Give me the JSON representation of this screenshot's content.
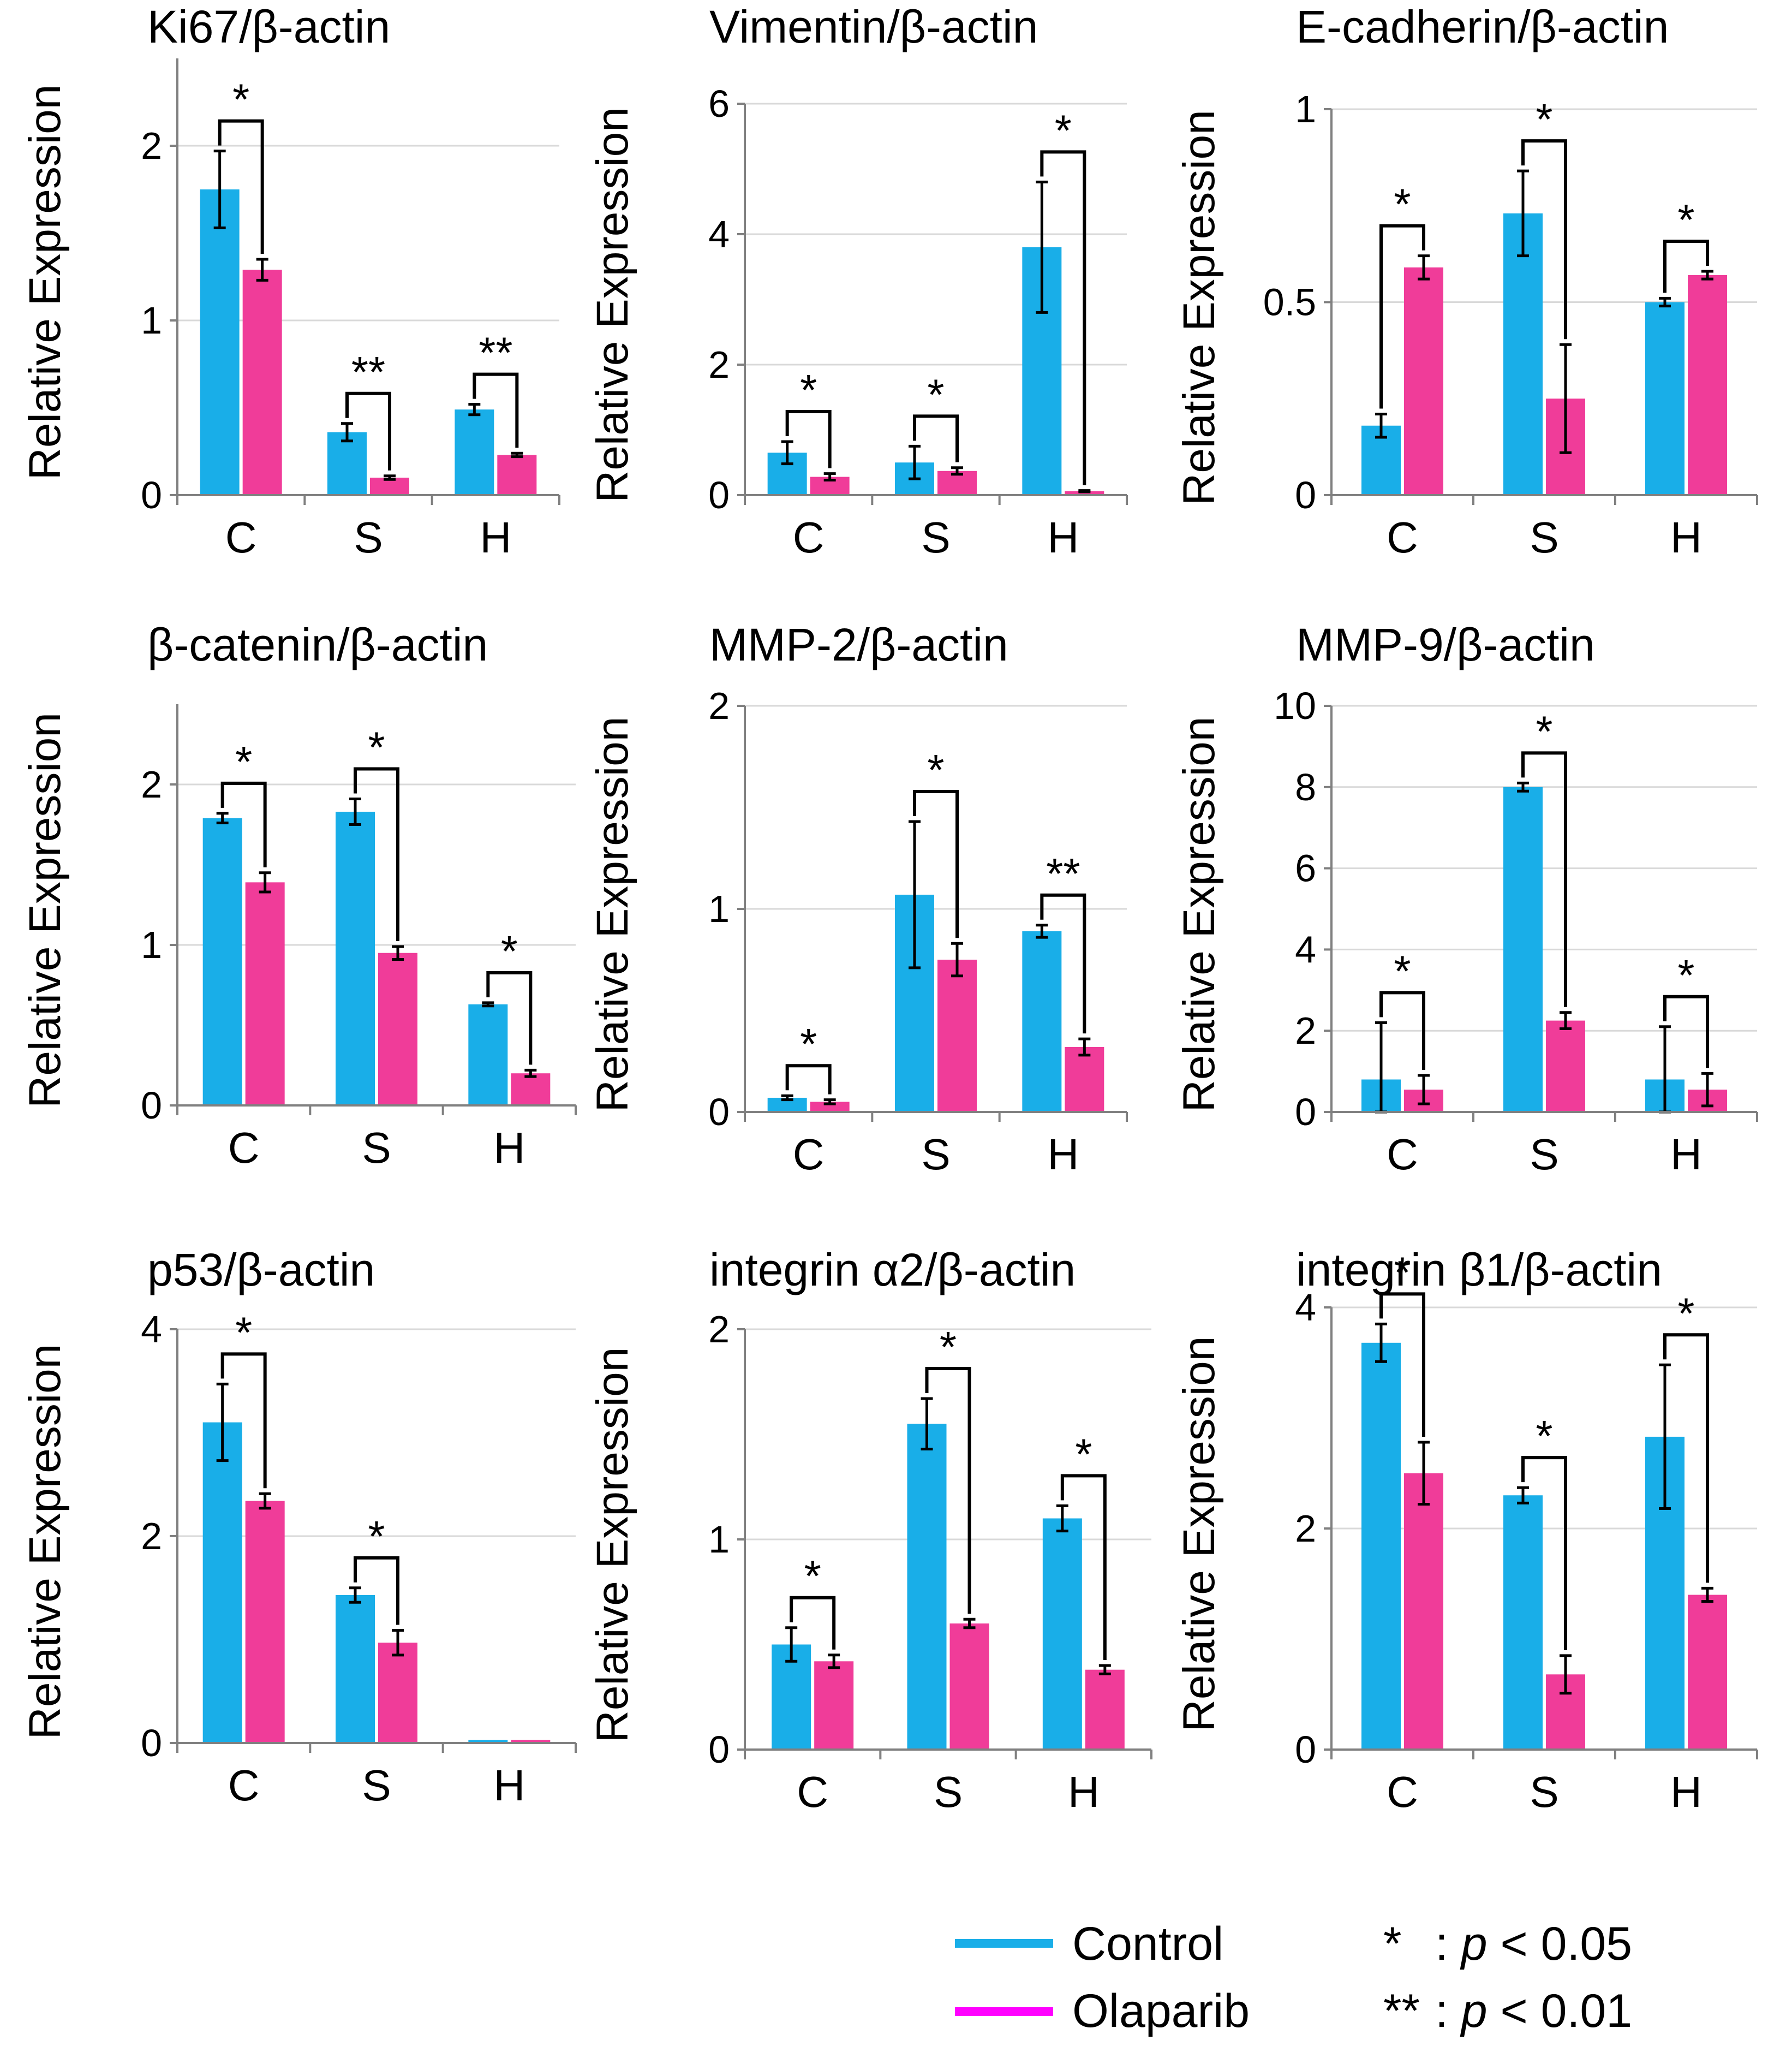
{
  "colors": {
    "control": "#19AEE8",
    "olaparib": "#F03C99",
    "legend_olaparib_line": "#FF00FF",
    "axis": "#808080",
    "grid": "#D9D9D9",
    "error_bar": "#000000"
  },
  "legend": {
    "control_label": "Control",
    "olaparib_label": "Olaparib",
    "sig1_stars": "*",
    "sig1_text": ": p < 0.05",
    "sig1_prefix": ": ",
    "sig1_p": "p",
    "sig1_rest": " < 0.05",
    "sig2_stars": "**",
    "sig2_prefix": ": ",
    "sig2_p": "p",
    "sig2_rest": " < 0.01",
    "sig2_text": ": p < 0.01"
  },
  "chart_data": [
    {
      "type": "bar",
      "title": "Ki67/β-actin",
      "ylabel": "Relative Expression",
      "categories": [
        "C",
        "S",
        "H"
      ],
      "ylim": [
        0,
        2.5
      ],
      "yticks": [
        0,
        1,
        2
      ],
      "series": [
        {
          "name": "Control",
          "values": [
            1.75,
            0.36,
            0.49
          ],
          "errors": [
            0.22,
            0.05,
            0.03
          ]
        },
        {
          "name": "Olaparib",
          "values": [
            1.29,
            0.1,
            0.23
          ],
          "errors": [
            0.06,
            0.01,
            0.01
          ]
        }
      ],
      "significance": [
        {
          "category": "C",
          "label": "*"
        },
        {
          "category": "S",
          "label": "**"
        },
        {
          "category": "H",
          "label": "**"
        }
      ]
    },
    {
      "type": "bar",
      "title": "Vimentin/β-actin",
      "ylabel": "Relative Expression",
      "categories": [
        "C",
        "S",
        "H"
      ],
      "ylim": [
        0,
        6
      ],
      "yticks": [
        0,
        2,
        4,
        6
      ],
      "series": [
        {
          "name": "Control",
          "values": [
            0.65,
            0.5,
            3.8
          ],
          "errors": [
            0.17,
            0.25,
            1.0
          ]
        },
        {
          "name": "Olaparib",
          "values": [
            0.28,
            0.37,
            0.06
          ],
          "errors": [
            0.05,
            0.05,
            0.01
          ]
        }
      ],
      "significance": [
        {
          "category": "C",
          "label": "*"
        },
        {
          "category": "S",
          "label": "*"
        },
        {
          "category": "H",
          "label": "*"
        }
      ]
    },
    {
      "type": "bar",
      "title": "E-cadherin/β-actin",
      "ylabel": "Relative Expression",
      "categories": [
        "C",
        "S",
        "H"
      ],
      "ylim": [
        0,
        1
      ],
      "yticks": [
        0,
        0.5,
        1
      ],
      "series": [
        {
          "name": "Control",
          "values": [
            0.18,
            0.73,
            0.5
          ],
          "errors": [
            0.03,
            0.11,
            0.01
          ]
        },
        {
          "name": "Olaparib",
          "values": [
            0.59,
            0.25,
            0.57
          ],
          "errors": [
            0.03,
            0.14,
            0.01
          ]
        }
      ],
      "significance": [
        {
          "category": "C",
          "label": "*"
        },
        {
          "category": "S",
          "label": "*"
        },
        {
          "category": "H",
          "label": "*"
        }
      ]
    },
    {
      "type": "bar",
      "title": "β-catenin/β-actin",
      "ylabel": "Relative Expression",
      "categories": [
        "C",
        "S",
        "H"
      ],
      "ylim": [
        0,
        2.5
      ],
      "yticks": [
        0,
        1,
        2
      ],
      "series": [
        {
          "name": "Control",
          "values": [
            1.79,
            1.83,
            0.63
          ],
          "errors": [
            0.03,
            0.08,
            0.01
          ]
        },
        {
          "name": "Olaparib",
          "values": [
            1.39,
            0.95,
            0.2
          ],
          "errors": [
            0.06,
            0.04,
            0.02
          ]
        }
      ],
      "significance": [
        {
          "category": "C",
          "label": "*"
        },
        {
          "category": "S",
          "label": "*"
        },
        {
          "category": "H",
          "label": "*"
        }
      ]
    },
    {
      "type": "bar",
      "title": "MMP-2/β-actin",
      "ylabel": "Relative Expression",
      "categories": [
        "C",
        "S",
        "H"
      ],
      "ylim": [
        0,
        2
      ],
      "yticks": [
        0,
        1,
        2
      ],
      "series": [
        {
          "name": "Control",
          "values": [
            0.07,
            1.07,
            0.89
          ],
          "errors": [
            0.01,
            0.36,
            0.03
          ]
        },
        {
          "name": "Olaparib",
          "values": [
            0.05,
            0.75,
            0.32
          ],
          "errors": [
            0.01,
            0.08,
            0.04
          ]
        }
      ],
      "significance": [
        {
          "category": "C",
          "label": "*"
        },
        {
          "category": "S",
          "label": "*"
        },
        {
          "category": "H",
          "label": "**"
        }
      ]
    },
    {
      "type": "bar",
      "title": "MMP-9/β-actin",
      "ylabel": "Relative Expression",
      "categories": [
        "C",
        "S",
        "H"
      ],
      "ylim": [
        0,
        10
      ],
      "yticks": [
        0,
        2,
        4,
        6,
        8,
        10
      ],
      "series": [
        {
          "name": "Control",
          "values": [
            0.8,
            8.0,
            0.8
          ],
          "errors": [
            1.4,
            0.1,
            1.3
          ]
        },
        {
          "name": "Olaparib",
          "values": [
            0.55,
            2.25,
            0.55
          ],
          "errors": [
            0.35,
            0.2,
            0.4
          ]
        }
      ],
      "significance": [
        {
          "category": "C",
          "label": "*"
        },
        {
          "category": "S",
          "label": "*"
        },
        {
          "category": "H",
          "label": "*"
        }
      ]
    },
    {
      "type": "bar",
      "title": "p53/β-actin",
      "ylabel": "Relative Expression",
      "categories": [
        "C",
        "S",
        "H"
      ],
      "ylim": [
        0,
        4
      ],
      "yticks": [
        0,
        2,
        4
      ],
      "series": [
        {
          "name": "Control",
          "values": [
            3.1,
            1.43,
            0.03
          ],
          "errors": [
            0.37,
            0.07,
            0.0
          ]
        },
        {
          "name": "Olaparib",
          "values": [
            2.34,
            0.97,
            0.03
          ],
          "errors": [
            0.07,
            0.12,
            0.0
          ]
        }
      ],
      "significance": [
        {
          "category": "C",
          "label": "*"
        },
        {
          "category": "S",
          "label": "*"
        }
      ]
    },
    {
      "type": "bar",
      "title": "integrin α2/β-actin",
      "ylabel": "Relative Expression",
      "categories": [
        "C",
        "S",
        "H"
      ],
      "ylim": [
        0,
        2
      ],
      "yticks": [
        0,
        1,
        2
      ],
      "series": [
        {
          "name": "Control",
          "values": [
            0.5,
            1.55,
            1.1
          ],
          "errors": [
            0.08,
            0.12,
            0.06
          ]
        },
        {
          "name": "Olaparib",
          "values": [
            0.42,
            0.6,
            0.38
          ],
          "errors": [
            0.03,
            0.02,
            0.02
          ]
        }
      ],
      "significance": [
        {
          "category": "C",
          "label": "*"
        },
        {
          "category": "S",
          "label": "*"
        },
        {
          "category": "H",
          "label": "*"
        }
      ]
    },
    {
      "type": "bar",
      "title": "integrin β1/β-actin",
      "ylabel": "Relative Expression",
      "categories": [
        "C",
        "S",
        "H"
      ],
      "ylim": [
        0,
        4
      ],
      "yticks": [
        0,
        2,
        4
      ],
      "series": [
        {
          "name": "Control",
          "values": [
            3.68,
            2.3,
            2.83
          ],
          "errors": [
            0.17,
            0.07,
            0.65
          ]
        },
        {
          "name": "Olaparib",
          "values": [
            2.5,
            0.68,
            1.4
          ],
          "errors": [
            0.28,
            0.17,
            0.06
          ]
        }
      ],
      "significance": [
        {
          "category": "C",
          "label": "*"
        },
        {
          "category": "S",
          "label": "*"
        },
        {
          "category": "H",
          "label": "*"
        }
      ]
    }
  ]
}
